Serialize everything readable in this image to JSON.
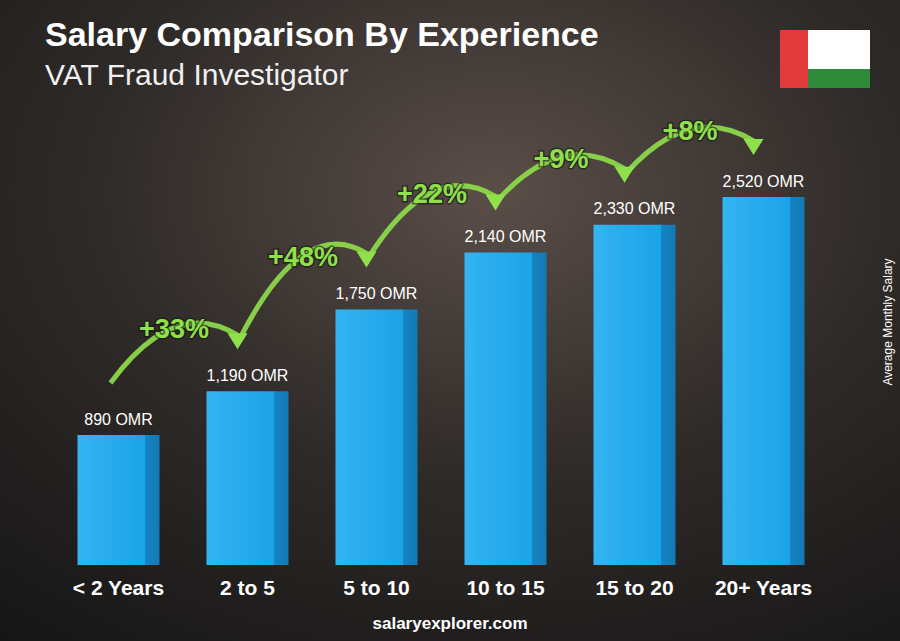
{
  "chart_data": {
    "type": "bar",
    "title": "Salary Comparison By Experience",
    "subtitle": "VAT Fraud Investigator",
    "ylabel": "Average Monthly Salary",
    "categories": [
      "< 2 Years",
      "2 to 5",
      "5 to 10",
      "10 to 15",
      "15 to 20",
      "20+ Years"
    ],
    "values": [
      890,
      1190,
      1750,
      2140,
      2330,
      2520
    ],
    "value_labels": [
      "890 OMR",
      "1,190 OMR",
      "1,750 OMR",
      "2,140 OMR",
      "2,330 OMR",
      "2,520 OMR"
    ],
    "color": "#1ba3e8",
    "ylim": [
      0,
      2520
    ],
    "grid": false,
    "tick_labels": "x",
    "data_labels": true,
    "annotations": [
      "+33%",
      "+48%",
      "+22%",
      "+9%",
      "+8%"
    ],
    "footer": "salaryexplorer.com"
  }
}
